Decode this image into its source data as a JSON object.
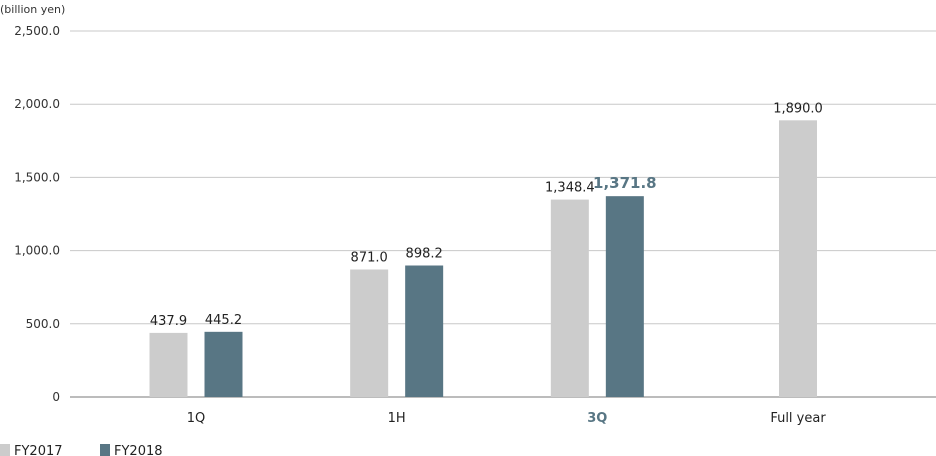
{
  "chart_data": {
    "type": "bar",
    "unit_label": "(billion yen)",
    "categories": [
      "1Q",
      "1H",
      "3Q",
      "Full year"
    ],
    "highlight_category": "3Q",
    "series": [
      {
        "name": "FY2017",
        "color": "#cccccc",
        "values": [
          437.9,
          871.0,
          1348.4,
          1890.0
        ],
        "labels": [
          "437.9",
          "871.0",
          "1,348.4",
          "1,890.0"
        ]
      },
      {
        "name": "FY2018",
        "color": "#587684",
        "values": [
          445.2,
          898.2,
          1371.8,
          null
        ],
        "labels": [
          "445.2",
          "898.2",
          "1,371.8",
          ""
        ]
      }
    ],
    "ylim": [
      0,
      2500
    ],
    "yticks": [
      0,
      500,
      1000,
      1500,
      2000,
      2500
    ],
    "ytick_labels": [
      "0",
      "500.0",
      "1,000.0",
      "1,500.0",
      "2,000.0",
      "2,500.0"
    ],
    "grid": true,
    "legend_position": "bottom-left"
  }
}
